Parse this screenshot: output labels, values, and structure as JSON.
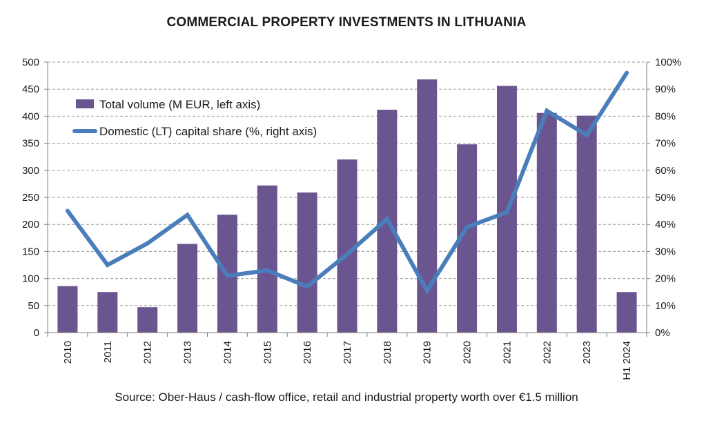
{
  "chart_data": {
    "type": "bar",
    "title": "COMMERCIAL PROPERTY INVESTMENTS IN LITHUANIA",
    "categories": [
      "2010",
      "2011",
      "2012",
      "2013",
      "2014",
      "2015",
      "2016",
      "2017",
      "2018",
      "2019",
      "2020",
      "2021",
      "2022",
      "2023",
      "H1 2024"
    ],
    "series": [
      {
        "name": "Total volume (M EUR, left axis)",
        "type": "bar",
        "axis": "left",
        "color": "#6a5590",
        "values": [
          86,
          75,
          47,
          164,
          218,
          272,
          259,
          320,
          412,
          468,
          348,
          456,
          406,
          401,
          75
        ]
      },
      {
        "name": "Domestic (LT) capital share (%, right axis)",
        "type": "line",
        "axis": "right",
        "color": "#4a7ebb",
        "values": [
          45,
          25,
          33,
          43.5,
          21,
          23,
          17,
          29,
          42,
          15.5,
          39,
          44.5,
          82,
          73,
          96
        ]
      }
    ],
    "ylim": [
      0,
      500
    ],
    "y_ticks": [
      0,
      50,
      100,
      150,
      200,
      250,
      300,
      350,
      400,
      450,
      500
    ],
    "y2lim": [
      0,
      100
    ],
    "y2_ticks": [
      "0%",
      "10%",
      "20%",
      "30%",
      "40%",
      "50%",
      "60%",
      "70%",
      "80%",
      "90%",
      "100%"
    ],
    "grid": true,
    "legend_position": "top-left",
    "source": "Source: Ober-Haus / cash-flow office, retail and industrial property worth over €1.5 million"
  }
}
